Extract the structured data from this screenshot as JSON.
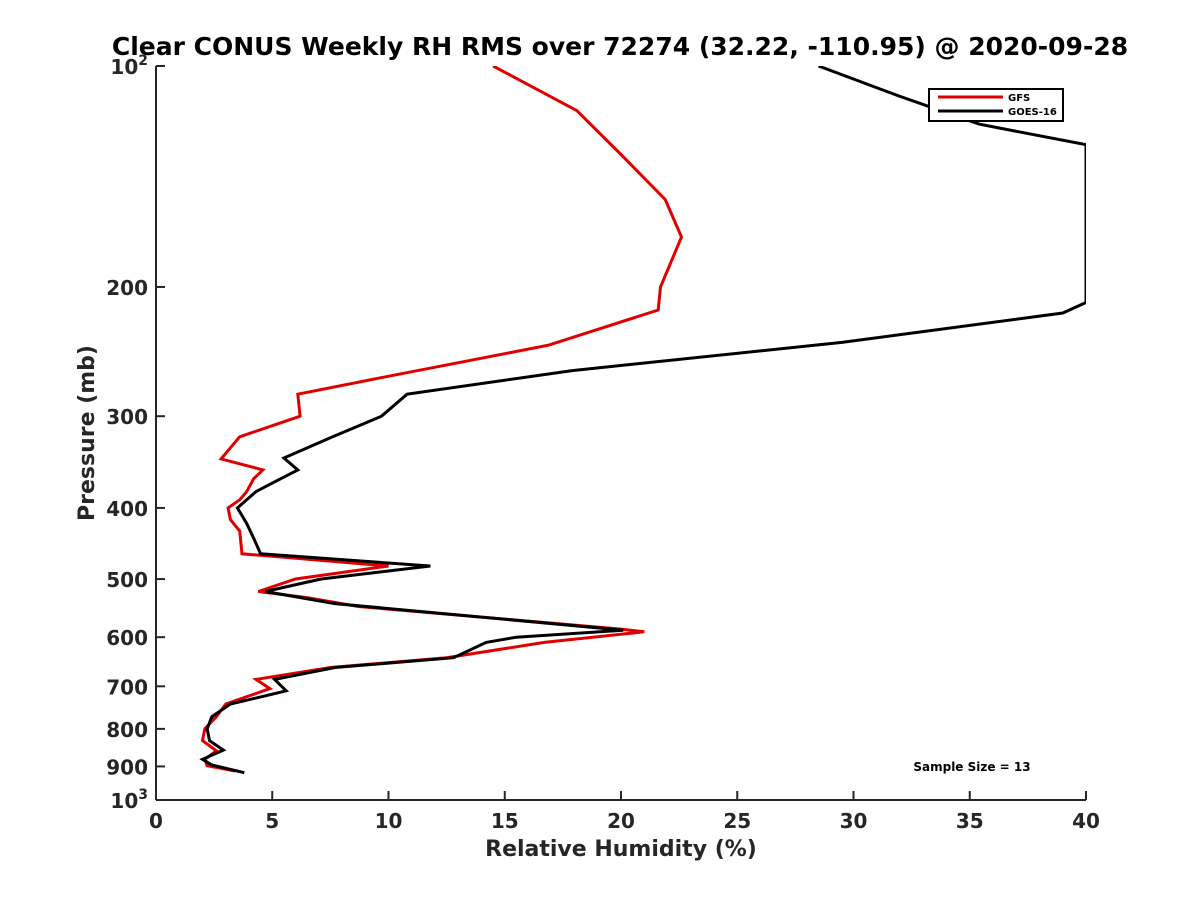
{
  "chart_data": {
    "type": "line",
    "title": "Clear CONUS Weekly RH RMS over 72274 (32.22, -110.95) @ 2020-09-28",
    "xlabel": "Relative Humidity (%)",
    "ylabel": "Pressure (mb)",
    "xlim": [
      0,
      40
    ],
    "ylim": [
      100,
      1000
    ],
    "yscale": "log",
    "y_reversed": true,
    "grid": false,
    "legend_position": "top-right",
    "x_ticks": [
      "0",
      "5",
      "10",
      "15",
      "20",
      "25",
      "30",
      "35",
      "40"
    ],
    "y_ticks": [
      {
        "value": 100,
        "base": "10",
        "exp": "2"
      },
      {
        "value": 200,
        "label": "200"
      },
      {
        "value": 300,
        "label": "300"
      },
      {
        "value": 400,
        "label": "400"
      },
      {
        "value": 500,
        "label": "500"
      },
      {
        "value": 600,
        "label": "600"
      },
      {
        "value": 700,
        "label": "700"
      },
      {
        "value": 800,
        "label": "800"
      },
      {
        "value": 900,
        "label": "900"
      },
      {
        "value": 1000,
        "base": "10",
        "exp": "3"
      }
    ],
    "annotation": "Sample Size = 13",
    "series": [
      {
        "name": "GFS",
        "color": "#e00000",
        "points": [
          [
            14.5,
            100
          ],
          [
            18.1,
            115
          ],
          [
            20.0,
            132
          ],
          [
            21.9,
            152
          ],
          [
            22.6,
            171
          ],
          [
            21.7,
            200
          ],
          [
            21.6,
            215
          ],
          [
            16.9,
            240
          ],
          [
            9.9,
            265
          ],
          [
            6.1,
            280
          ],
          [
            6.2,
            300
          ],
          [
            3.6,
            320
          ],
          [
            2.8,
            343
          ],
          [
            4.6,
            355
          ],
          [
            4.2,
            365
          ],
          [
            3.9,
            380
          ],
          [
            3.6,
            390
          ],
          [
            3.1,
            400
          ],
          [
            3.2,
            415
          ],
          [
            3.6,
            430
          ],
          [
            3.7,
            462
          ],
          [
            10.0,
            480
          ],
          [
            6.0,
            500
          ],
          [
            4.4,
            520
          ],
          [
            6.5,
            530
          ],
          [
            8.7,
            545
          ],
          [
            20.0,
            585
          ],
          [
            21.0,
            590
          ],
          [
            16.7,
            610
          ],
          [
            12.5,
            640
          ],
          [
            7.5,
            660
          ],
          [
            4.3,
            685
          ],
          [
            4.9,
            705
          ],
          [
            3.0,
            740
          ],
          [
            2.6,
            770
          ],
          [
            2.1,
            800
          ],
          [
            2.0,
            830
          ],
          [
            2.6,
            857
          ],
          [
            2.1,
            880
          ],
          [
            2.2,
            898
          ],
          [
            3.4,
            913
          ]
        ]
      },
      {
        "name": "GOES-16",
        "color": "#000000",
        "points": [
          [
            28.5,
            100
          ],
          [
            32.0,
            110
          ],
          [
            35.4,
            120
          ],
          [
            40.0,
            128
          ],
          [
            40.0,
            210
          ],
          [
            39.0,
            217
          ],
          [
            29.5,
            238
          ],
          [
            17.9,
            260
          ],
          [
            10.8,
            280
          ],
          [
            9.7,
            300
          ],
          [
            7.6,
            320
          ],
          [
            5.5,
            342
          ],
          [
            6.1,
            355
          ],
          [
            5.0,
            370
          ],
          [
            4.3,
            380
          ],
          [
            3.5,
            400
          ],
          [
            3.9,
            420
          ],
          [
            4.2,
            440
          ],
          [
            4.5,
            462
          ],
          [
            11.8,
            480
          ],
          [
            7.1,
            500
          ],
          [
            4.7,
            520
          ],
          [
            7.7,
            540
          ],
          [
            20.1,
            587
          ],
          [
            15.5,
            600
          ],
          [
            14.2,
            610
          ],
          [
            12.8,
            640
          ],
          [
            7.7,
            660
          ],
          [
            5.1,
            685
          ],
          [
            5.6,
            710
          ],
          [
            4.8,
            720
          ],
          [
            3.2,
            740
          ],
          [
            2.4,
            770
          ],
          [
            2.2,
            800
          ],
          [
            2.3,
            830
          ],
          [
            2.9,
            855
          ],
          [
            2.0,
            880
          ],
          [
            2.4,
            896
          ],
          [
            3.8,
            918
          ]
        ]
      }
    ]
  }
}
